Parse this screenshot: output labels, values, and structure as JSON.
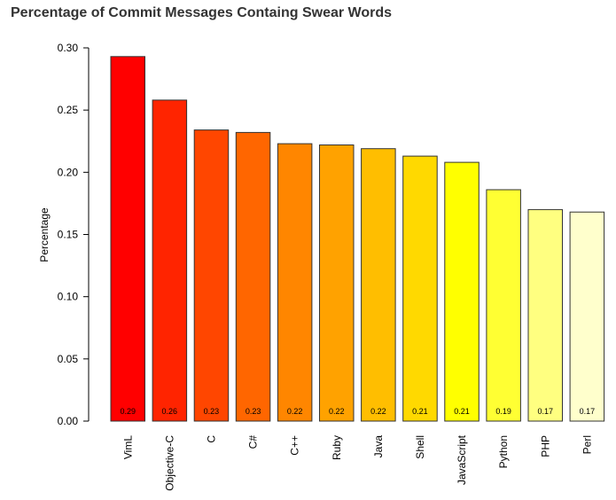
{
  "chart_data": {
    "type": "bar",
    "title": "Percentage of Commit Messages Containg Swear Words",
    "xlabel": "",
    "ylabel": "Percentage",
    "ylim": [
      0,
      0.3
    ],
    "yticks": [
      "0.00",
      "0.05",
      "0.10",
      "0.15",
      "0.20",
      "0.25",
      "0.30"
    ],
    "categories": [
      "VimL",
      "Objective-C",
      "C",
      "C#",
      "C++",
      "Ruby",
      "Java",
      "Shell",
      "JavaScript",
      "Python",
      "PHP",
      "Perl"
    ],
    "values": [
      0.293,
      0.258,
      0.234,
      0.232,
      0.223,
      0.222,
      0.219,
      0.213,
      0.208,
      0.186,
      0.17,
      0.168
    ],
    "data_labels": [
      "0.29",
      "0.26",
      "0.23",
      "0.23",
      "0.22",
      "0.22",
      "0.22",
      "0.21",
      "0.21",
      "0.19",
      "0.17",
      "0.17"
    ],
    "colors": [
      "#ff0000",
      "#ff2400",
      "#ff4600",
      "#ff6600",
      "#ff8600",
      "#ffa200",
      "#ffbe00",
      "#ffd900",
      "#ffff00",
      "#ffff33",
      "#ffff80",
      "#ffffcc"
    ],
    "grid": false,
    "legend": "none"
  }
}
